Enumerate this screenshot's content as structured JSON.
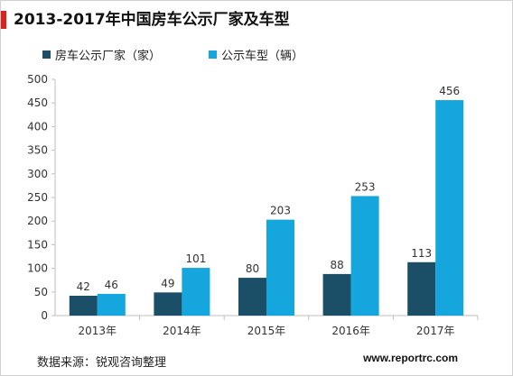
{
  "title": "2013-2017年中国房车公示厂家及车型",
  "source": "数据来源：锐观咨询整理",
  "url": "www.reportrc.com",
  "colors": {
    "accent": "#e0201b",
    "series0": "#1b4f68",
    "series1": "#14a6dc"
  },
  "chart_data": {
    "type": "bar",
    "categories": [
      "2013年",
      "2014年",
      "2015年",
      "2016年",
      "2017年"
    ],
    "series": [
      {
        "name": "房车公示厂家（家）",
        "values": [
          42,
          49,
          80,
          88,
          113
        ]
      },
      {
        "name": "公示车型（辆）",
        "values": [
          46,
          101,
          203,
          253,
          456
        ]
      }
    ],
    "ylim": [
      0,
      500
    ],
    "yticks": [
      0,
      50,
      100,
      150,
      200,
      250,
      300,
      350,
      400,
      450,
      500
    ],
    "grid": false,
    "legend": "top-left"
  }
}
